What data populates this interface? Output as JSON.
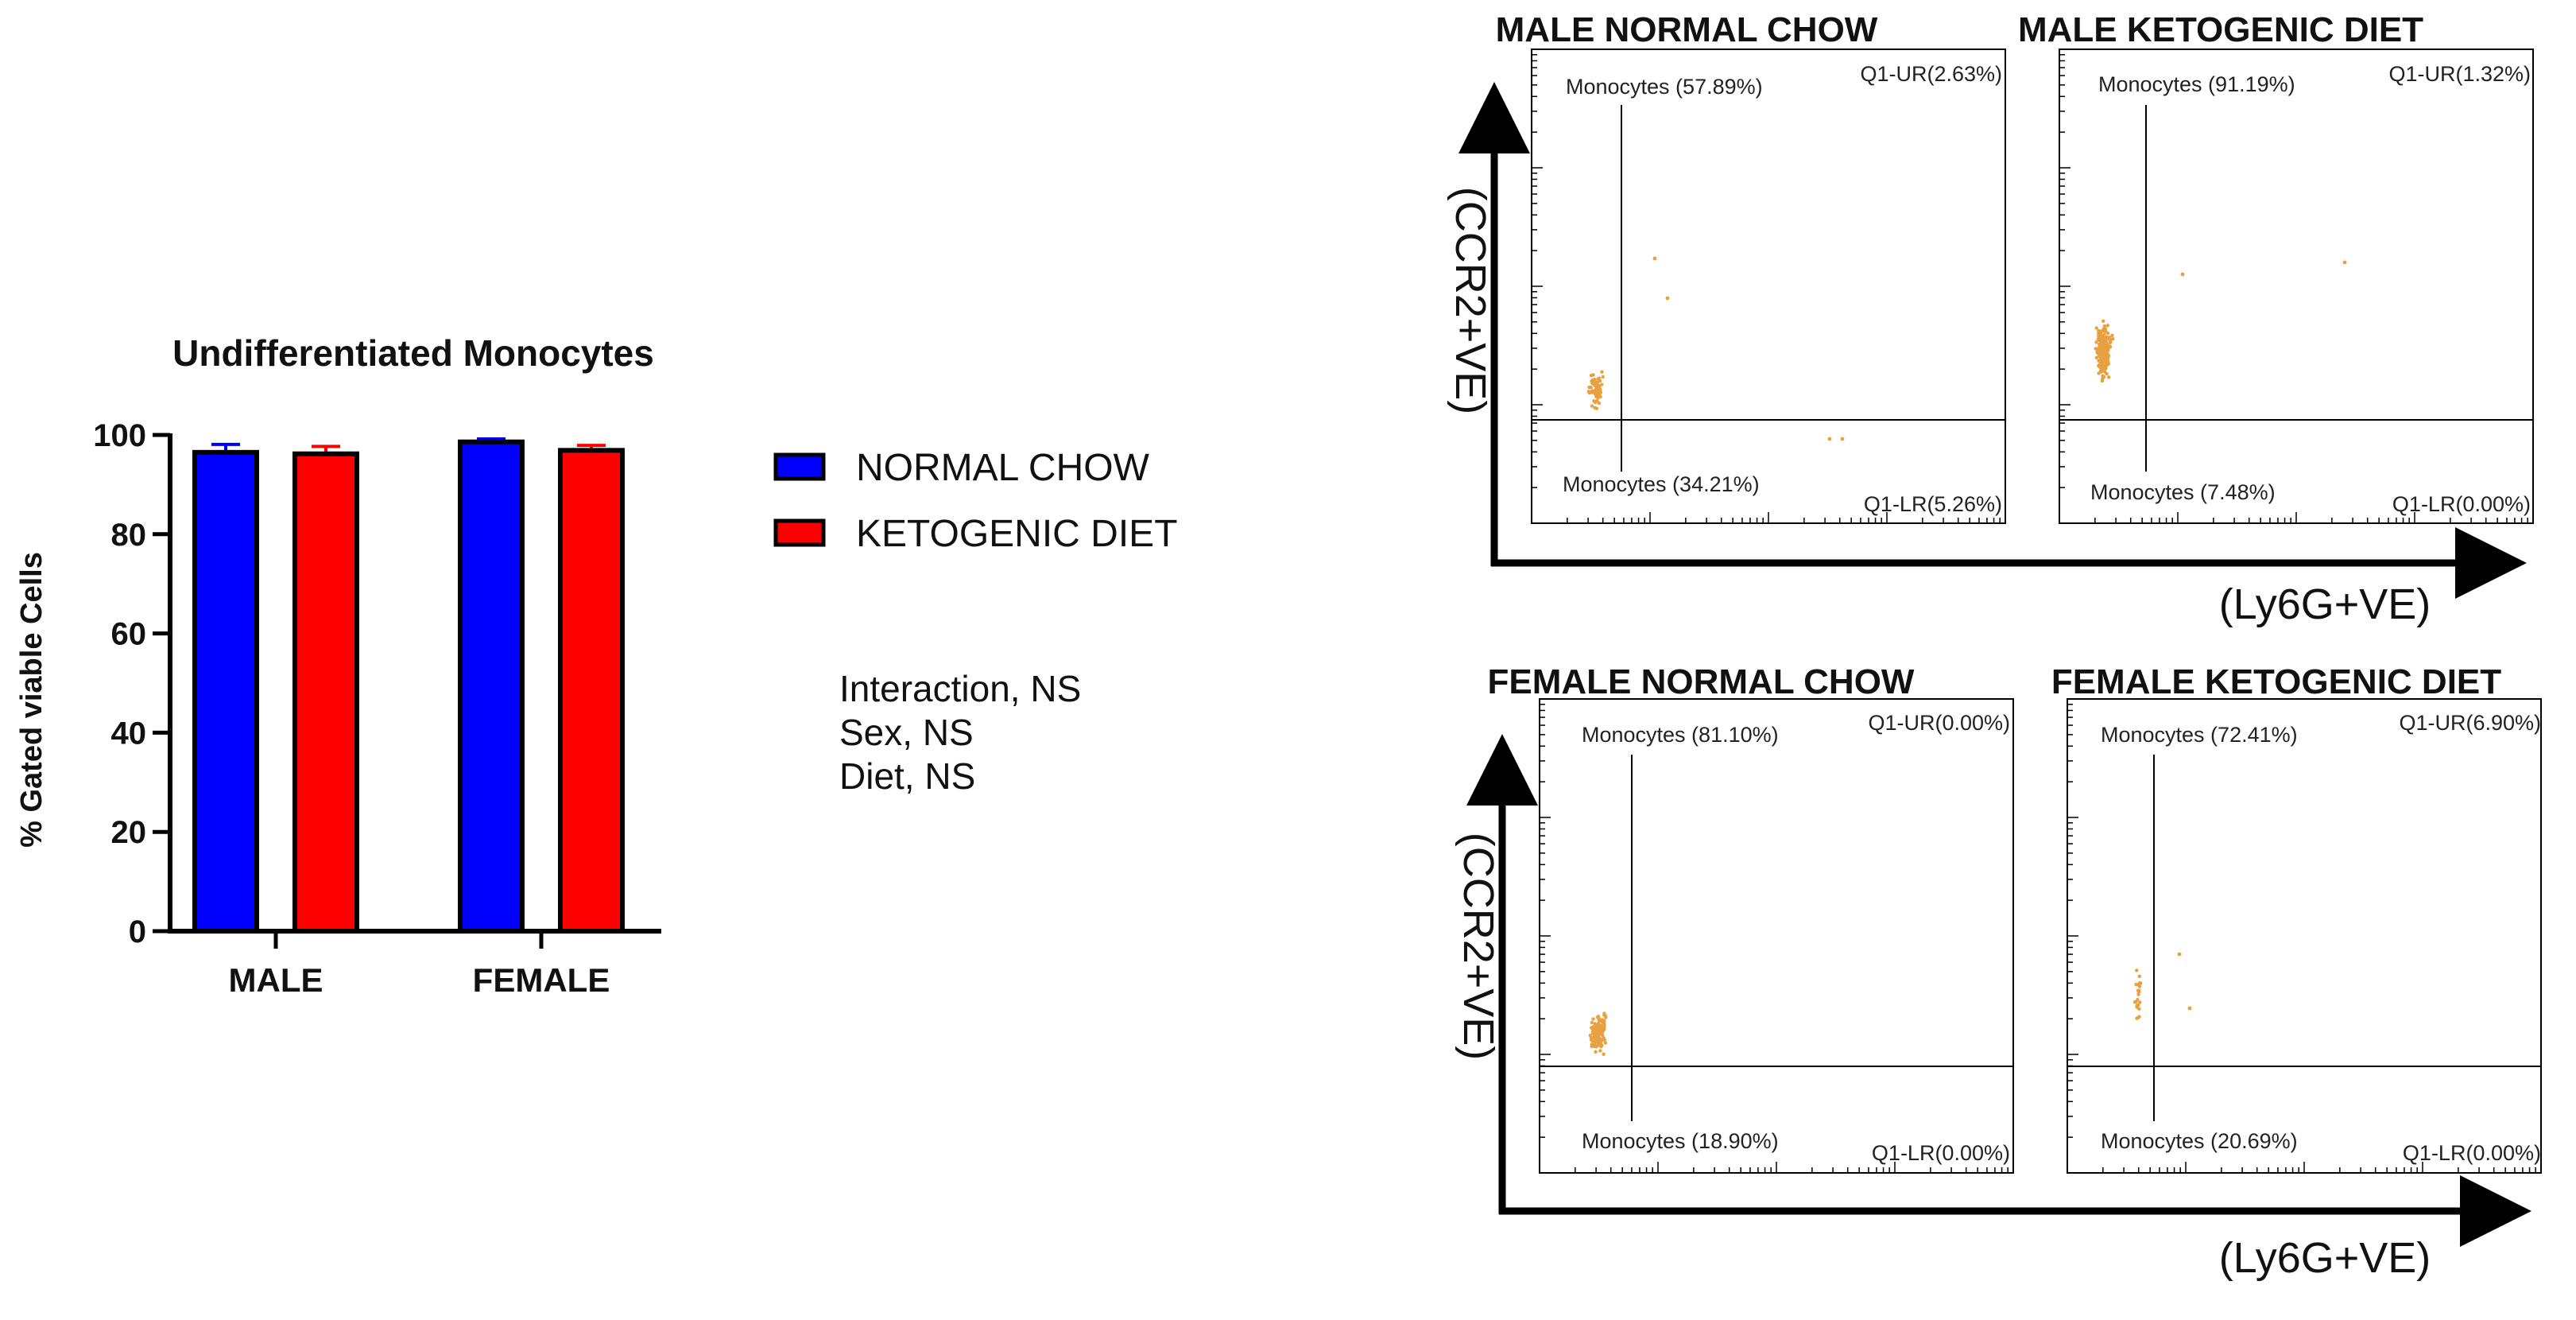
{
  "chart_data": [
    {
      "type": "bar",
      "title": "Undifferentiated Monocytes",
      "ylabel": "% Gated viable Cells",
      "xlabel": "",
      "ylim": [
        0,
        100
      ],
      "yticks": [
        0,
        20,
        40,
        60,
        80,
        100
      ],
      "categories": [
        "MALE",
        "FEMALE"
      ],
      "series": [
        {
          "name": "NORMAL CHOW",
          "color": "#0000ff",
          "values": [
            96.5,
            98.6
          ],
          "errors": [
            1.6,
            0.6
          ]
        },
        {
          "name": "KETOGENIC DIET",
          "color": "#ff0000",
          "values": [
            96.2,
            96.9
          ],
          "errors": [
            1.5,
            1.0
          ]
        }
      ],
      "legend_position": "right",
      "annotations": [
        "Interaction, NS",
        "Sex, NS",
        "Diet, NS"
      ]
    },
    {
      "type": "scatter",
      "title": "MALE NORMAL CHOW",
      "xlabel": "(Ly6G+VE)",
      "ylabel": "(CCR2+VE)",
      "point_color": "#e8a040",
      "quadrants": {
        "upper_left": "Monocytes (57.89%)",
        "upper_right": "Q1-UR(2.63%)",
        "lower_left": "Monocytes (34.21%)",
        "lower_right": "Q1-LR(5.26%)"
      }
    },
    {
      "type": "scatter",
      "title": "MALE KETOGENIC DIET",
      "xlabel": "(Ly6G+VE)",
      "ylabel": "(CCR2+VE)",
      "point_color": "#e8a040",
      "quadrants": {
        "upper_left": "Monocytes (91.19%)",
        "upper_right": "Q1-UR(1.32%)",
        "lower_left": "Monocytes (7.48%)",
        "lower_right": "Q1-LR(0.00%)"
      }
    },
    {
      "type": "scatter",
      "title": "FEMALE NORMAL CHOW",
      "xlabel": "(Ly6G+VE)",
      "ylabel": "(CCR2+VE)",
      "point_color": "#e8a040",
      "quadrants": {
        "upper_left": "Monocytes (81.10%)",
        "upper_right": "Q1-UR(0.00%)",
        "lower_left": "Monocytes (18.90%)",
        "lower_right": "Q1-LR(0.00%)"
      }
    },
    {
      "type": "scatter",
      "title": "FEMALE KETOGENIC DIET",
      "xlabel": "(Ly6G+VE)",
      "ylabel": "(CCR2+VE)",
      "point_color": "#e8a040",
      "quadrants": {
        "upper_left": "Monocytes (72.41%)",
        "upper_right": "Q1-UR(6.90%)",
        "lower_left": "Monocytes (20.69%)",
        "lower_right": "Q1-LR(0.00%)"
      }
    }
  ],
  "facs_axes": {
    "top": {
      "xlabel": "(Ly6G+VE)",
      "ylabel": "(CCR2+VE)"
    },
    "bottom": {
      "xlabel": "(Ly6G+VE)",
      "ylabel": "(CCR2+VE)"
    }
  }
}
